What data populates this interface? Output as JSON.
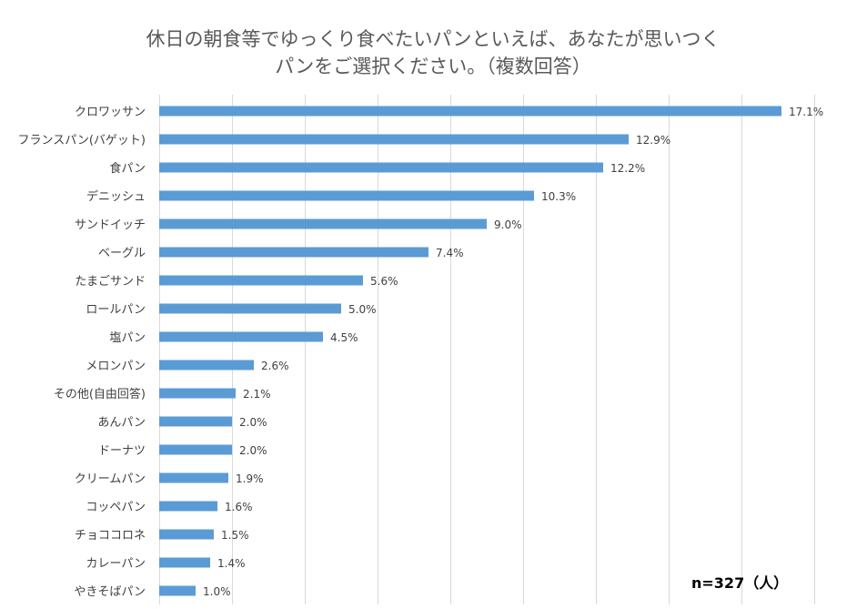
{
  "chart_data": {
    "type": "bar",
    "orientation": "horizontal",
    "title": [
      "休日の朝食等でゆっくり食べたいパンといえば、あなたが思いつく",
      "パンをご選択ください。（複数回答）"
    ],
    "categories": [
      "クロワッサン",
      "フランスパン(バゲット)",
      "食パン",
      "デニッシュ",
      "サンドイッチ",
      "ベーグル",
      "たまごサンド",
      "ロールパン",
      "塩パン",
      "メロンパン",
      "その他(自由回答)",
      "あんパン",
      "ドーナツ",
      "クリームパン",
      "コッペパン",
      "チョココロネ",
      "カレーパン",
      "やきそばパン"
    ],
    "values": [
      17.1,
      12.9,
      12.2,
      10.3,
      9.0,
      7.4,
      5.6,
      5.0,
      4.5,
      2.6,
      2.1,
      2.0,
      2.0,
      1.9,
      1.6,
      1.5,
      1.4,
      1.0
    ],
    "value_labels": [
      "17.1%",
      "12.9%",
      "12.2%",
      "10.3%",
      "9.0%",
      "7.4%",
      "5.6%",
      "5.0%",
      "4.5%",
      "2.6%",
      "2.1%",
      "2.0%",
      "2.0%",
      "1.9%",
      "1.6%",
      "1.5%",
      "1.4%",
      "1.0%"
    ],
    "xlim": [
      0,
      18
    ],
    "grid_step": 2,
    "grid": true,
    "bar_color": "#5b9bd5",
    "annotation": "n=327（人）",
    "xlabel": "",
    "ylabel": ""
  }
}
